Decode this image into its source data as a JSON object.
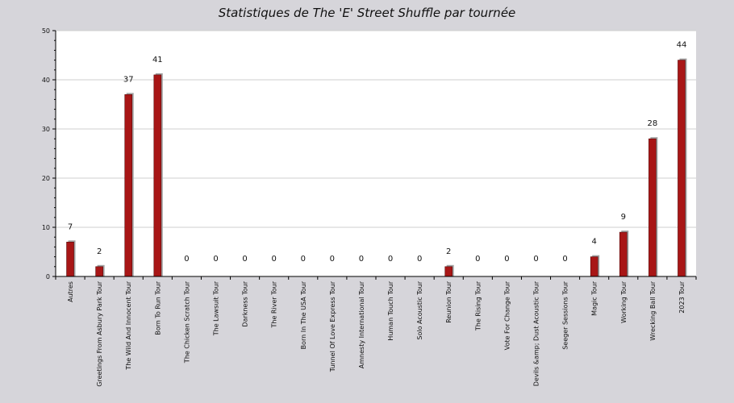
{
  "chart_data": {
    "type": "bar",
    "title": "Statistiques de The 'E' Street Shuffle par tournée",
    "xlabel": "",
    "ylabel": "",
    "ylim": [
      0,
      50
    ],
    "yticks": [
      0,
      10,
      20,
      30,
      40,
      50
    ],
    "grid": true,
    "categories": [
      "Autres",
      "Greetings From Asbury Park Tour",
      "The Wild And Innocent Tour",
      "Born To Run Tour",
      "The Chicken Scratch Tour",
      "The Lawsuit Tour",
      "Darkness Tour",
      "The River Tour",
      "Born In The USA Tour",
      "Tunnel Of Love Express Tour",
      "Amnesty International Tour",
      "Human Touch Tour",
      "Solo Acoustic Tour",
      "Reunion Tour",
      "The Rising Tour",
      "Vote For Change Tour",
      "Devils &amp; Dust Acoustic Tour",
      "Seeger Sessions Tour",
      "Magic Tour",
      "Working Tour",
      "Wrecking Ball Tour",
      "2023 Tour"
    ],
    "values": [
      7,
      2,
      37,
      41,
      0,
      0,
      0,
      0,
      0,
      0,
      0,
      0,
      0,
      2,
      0,
      0,
      0,
      0,
      4,
      9,
      28,
      44
    ],
    "colors": {
      "bar": "#a81616",
      "bar_shadow": "#a3a3a3",
      "plot_background": "#ffffff",
      "page_background": "#d6d5da",
      "grid": "#cfcfcf"
    }
  }
}
